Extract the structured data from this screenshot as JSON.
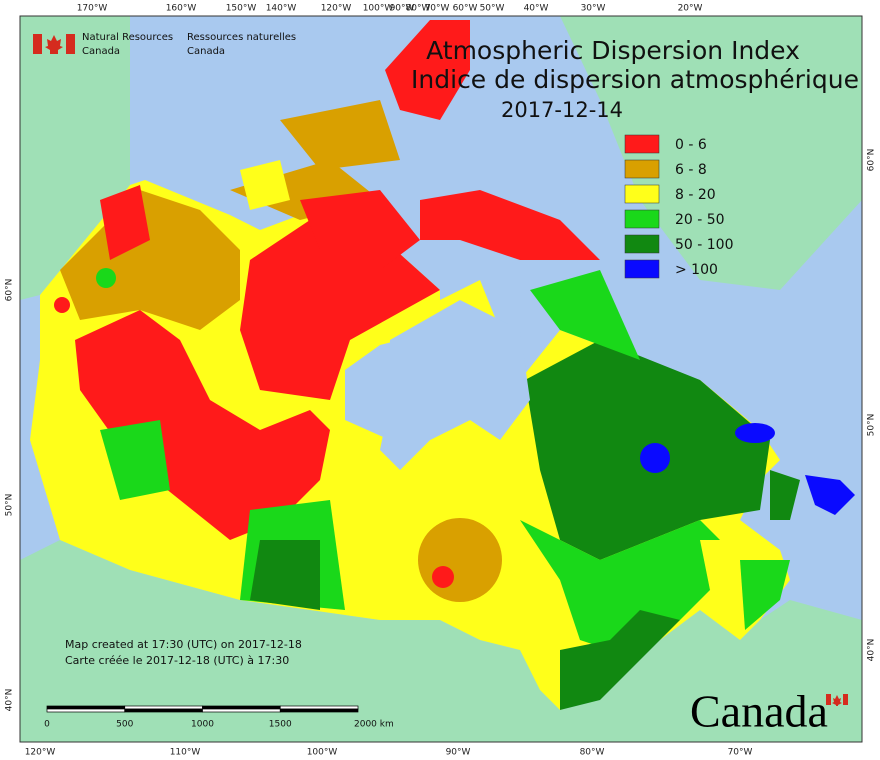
{
  "header": {
    "title": "Atmospheric Dispersion Index",
    "title_fr": "Indice de dispersion atmosphérique",
    "date": "2017-12-14"
  },
  "logo": {
    "en": [
      "Natural Resources",
      "Canada"
    ],
    "fr": [
      "Ressources naturelles",
      "Canada"
    ]
  },
  "legend": [
    {
      "label": "0 - 6",
      "color": "#ff1a1a"
    },
    {
      "label": "6 - 8",
      "color": "#d9a000"
    },
    {
      "label": "8 - 20",
      "color": "#ffff1a"
    },
    {
      "label": "20 - 50",
      "color": "#1ad81a"
    },
    {
      "label": "50 - 100",
      "color": "#118811"
    },
    {
      "label": "> 100",
      "color": "#0a0aff"
    }
  ],
  "graticule": {
    "top": [
      "170°W",
      "160°W",
      "150°W",
      "140°W",
      "120°W",
      "100°W",
      "90°W",
      "80°W",
      "70°W",
      "60°W",
      "50°W",
      "40°W",
      "30°W",
      "20°W"
    ],
    "bottom": [
      "120°W",
      "110°W",
      "100°W",
      "90°W",
      "80°W",
      "70°W"
    ],
    "left": [
      "60°N",
      "50°N",
      "40°N"
    ],
    "right": [
      "60°N",
      "50°N",
      "40°N"
    ]
  },
  "scale_bar": {
    "labels": [
      "0",
      "500",
      "1000",
      "1500",
      "2000 km"
    ]
  },
  "credits": [
    "Map created at 17:30 (UTC) on 2017-12-18",
    "Carte créée le 2017-12-18 (UTC) à 17:30"
  ],
  "wordmark": "Canada"
}
